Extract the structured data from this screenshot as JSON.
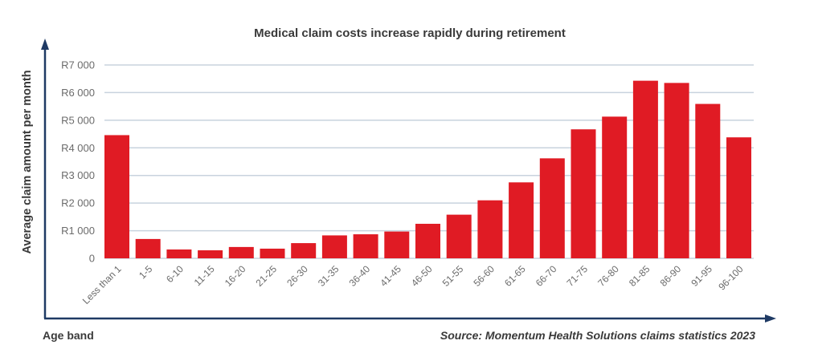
{
  "chart_data": {
    "type": "bar",
    "title": "Medical claim costs increase rapidly during retirement",
    "xlabel": "Age band",
    "ylabel": "Average claim amount per month",
    "source": "Source: Momentum Health Solutions claims statistics 2023",
    "categories": [
      "Less than 1",
      "1-5",
      "6-10",
      "11-15",
      "16-20",
      "21-25",
      "26-30",
      "31-35",
      "36-40",
      "41-45",
      "46-50",
      "51-55",
      "56-60",
      "61-65",
      "66-70",
      "71-75",
      "76-80",
      "81-85",
      "86-90",
      "91-95",
      "96-100"
    ],
    "values": [
      4460,
      700,
      320,
      290,
      410,
      350,
      550,
      830,
      870,
      970,
      1250,
      1580,
      2100,
      2750,
      3620,
      4670,
      5130,
      6430,
      6350,
      5590,
      4380
    ],
    "ylim": [
      0,
      7000
    ],
    "yticks": [
      0,
      1000,
      2000,
      3000,
      4000,
      5000,
      6000,
      7000
    ],
    "ytick_labels": [
      "0",
      "R1 000",
      "R2 000",
      "R3 000",
      "R4 000",
      "R5 000",
      "R6 000",
      "R7 000"
    ],
    "grid": true,
    "legend": null,
    "colors": {
      "bar": "#E01B24",
      "grid": "#C8D3DE",
      "axis": "#1F3A64"
    }
  }
}
